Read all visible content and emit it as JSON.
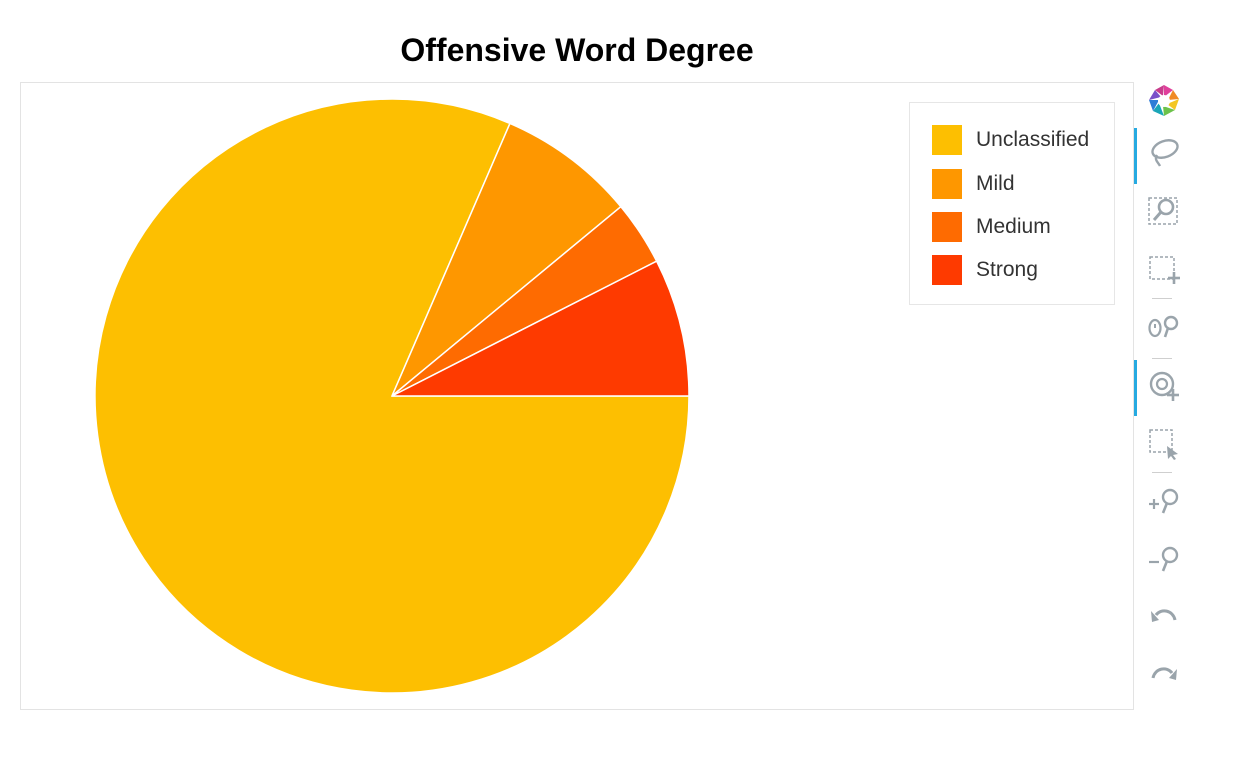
{
  "chart_data": {
    "type": "pie",
    "title": "Offensive Word Degree",
    "slices": [
      {
        "label": "Unclassified",
        "value": 81.5,
        "color": "#FDBF01"
      },
      {
        "label": "Mild",
        "value": 7.5,
        "color": "#FE9700"
      },
      {
        "label": "Medium",
        "value": 3.5,
        "color": "#FE6B01"
      },
      {
        "label": "Strong",
        "value": 7.5,
        "color": "#FE3A00"
      }
    ],
    "legend_position": "top-right"
  },
  "toolbar": {
    "tools": [
      {
        "name": "logo-icon",
        "active": false
      },
      {
        "name": "lasso-select-icon",
        "active": true
      },
      {
        "name": "box-zoom-icon",
        "active": false
      },
      {
        "name": "box-select-icon",
        "active": false
      },
      {
        "name": "xwheel-zoom-icon",
        "active": false
      },
      {
        "name": "wheel-zoom-icon",
        "active": true
      },
      {
        "name": "tap-select-icon",
        "active": false
      },
      {
        "name": "zoom-in-icon",
        "active": false
      },
      {
        "name": "zoom-out-icon",
        "active": false
      },
      {
        "name": "undo-icon",
        "active": false
      },
      {
        "name": "redo-icon",
        "active": false
      }
    ]
  }
}
